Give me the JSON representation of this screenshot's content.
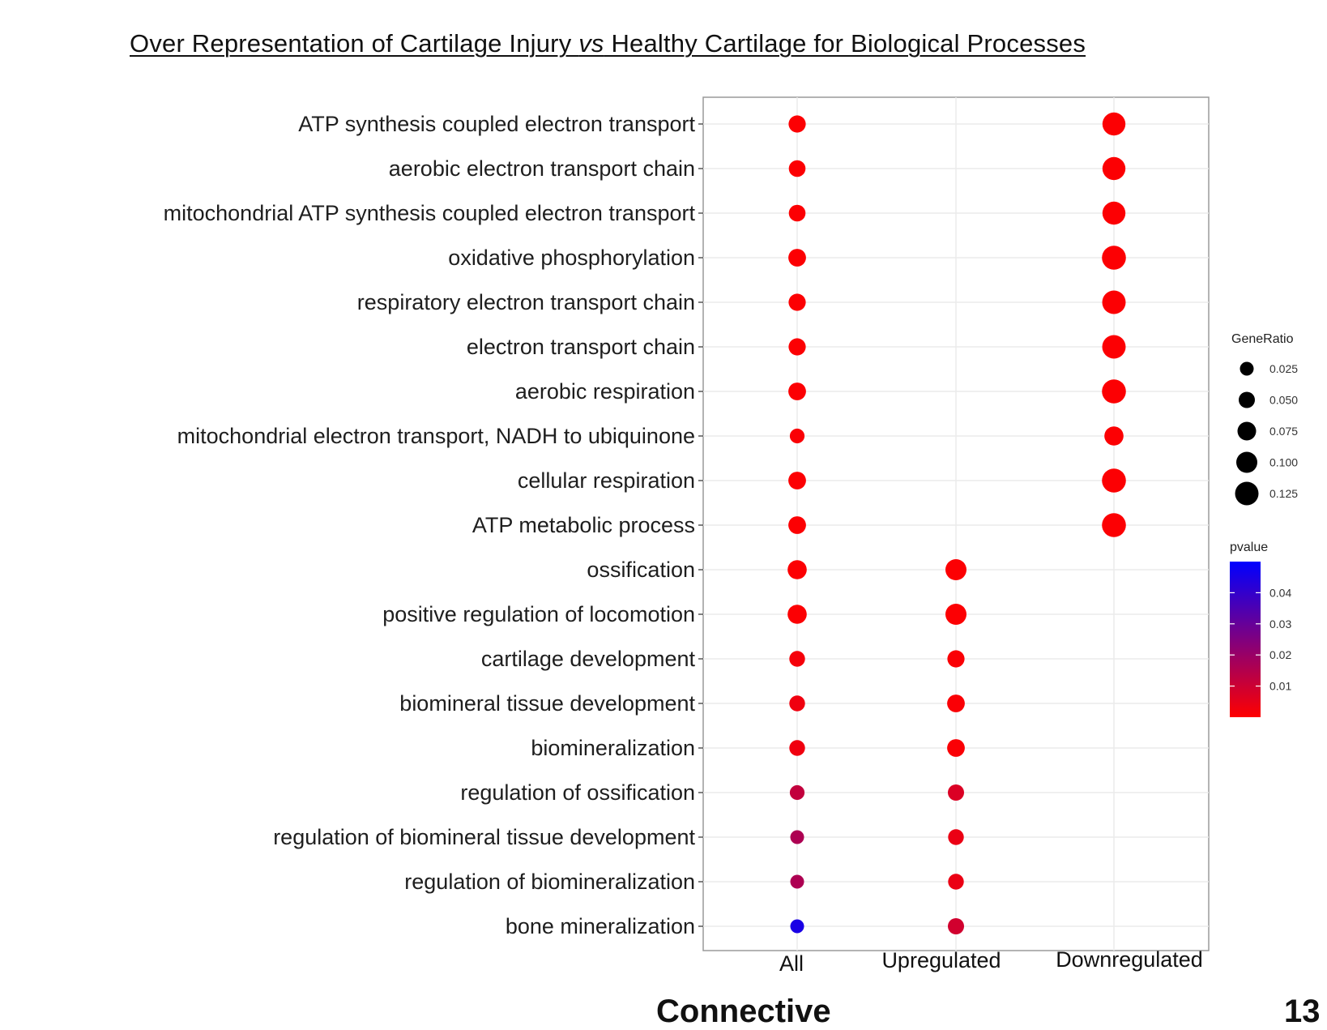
{
  "title": {
    "part1": "Over Representation of Cartilage Injury ",
    "italic": "vs",
    "part2": " Healthy Cartilage for Biological Processes"
  },
  "chart_data": {
    "type": "scatter",
    "subtype": "dot plot",
    "title": "Over Representation of Cartilage Injury vs Healthy Cartilage for Biological Processes",
    "categories_x": [
      "All",
      "Upregulated",
      "Downregulated"
    ],
    "categories_y": [
      "ATP synthesis coupled electron transport",
      "aerobic electron transport chain",
      "mitochondrial ATP synthesis coupled electron transport",
      "oxidative phosphorylation",
      "respiratory electron transport chain",
      "electron transport chain",
      "aerobic respiration",
      "mitochondrial electron transport, NADH to ubiquinone",
      "cellular respiration",
      "ATP metabolic process",
      "ossification",
      "positive regulation of locomotion",
      "cartilage development",
      "biomineral tissue development",
      "biomineralization",
      "regulation of ossification",
      "regulation of biomineral tissue development",
      "regulation of biomineralization",
      "bone mineralization"
    ],
    "points": [
      {
        "term": "ATP synthesis coupled electron transport",
        "group": "All",
        "gene_ratio": 0.06,
        "pvalue": 0.0005
      },
      {
        "term": "ATP synthesis coupled electron transport",
        "group": "Downregulated",
        "gene_ratio": 0.12,
        "pvalue": 0.0005
      },
      {
        "term": "aerobic electron transport chain",
        "group": "All",
        "gene_ratio": 0.055,
        "pvalue": 0.0005
      },
      {
        "term": "aerobic electron transport chain",
        "group": "Downregulated",
        "gene_ratio": 0.12,
        "pvalue": 0.0005
      },
      {
        "term": "mitochondrial ATP synthesis coupled electron transport",
        "group": "All",
        "gene_ratio": 0.055,
        "pvalue": 0.0005
      },
      {
        "term": "mitochondrial ATP synthesis coupled electron transport",
        "group": "Downregulated",
        "gene_ratio": 0.12,
        "pvalue": 0.0005
      },
      {
        "term": "oxidative phosphorylation",
        "group": "All",
        "gene_ratio": 0.065,
        "pvalue": 0.0005
      },
      {
        "term": "oxidative phosphorylation",
        "group": "Downregulated",
        "gene_ratio": 0.13,
        "pvalue": 0.0005
      },
      {
        "term": "respiratory electron transport chain",
        "group": "All",
        "gene_ratio": 0.06,
        "pvalue": 0.0005
      },
      {
        "term": "respiratory electron transport chain",
        "group": "Downregulated",
        "gene_ratio": 0.125,
        "pvalue": 0.0005
      },
      {
        "term": "electron transport chain",
        "group": "All",
        "gene_ratio": 0.06,
        "pvalue": 0.0005
      },
      {
        "term": "electron transport chain",
        "group": "Downregulated",
        "gene_ratio": 0.125,
        "pvalue": 0.0005
      },
      {
        "term": "aerobic respiration",
        "group": "All",
        "gene_ratio": 0.065,
        "pvalue": 0.0005
      },
      {
        "term": "aerobic respiration",
        "group": "Downregulated",
        "gene_ratio": 0.13,
        "pvalue": 0.0005
      },
      {
        "term": "mitochondrial electron transport, NADH to ubiquinone",
        "group": "All",
        "gene_ratio": 0.035,
        "pvalue": 0.001
      },
      {
        "term": "mitochondrial electron transport, NADH to ubiquinone",
        "group": "Downregulated",
        "gene_ratio": 0.08,
        "pvalue": 0.0005
      },
      {
        "term": "cellular respiration",
        "group": "All",
        "gene_ratio": 0.065,
        "pvalue": 0.0005
      },
      {
        "term": "cellular respiration",
        "group": "Downregulated",
        "gene_ratio": 0.13,
        "pvalue": 0.0005
      },
      {
        "term": "ATP metabolic process",
        "group": "All",
        "gene_ratio": 0.065,
        "pvalue": 0.0005
      },
      {
        "term": "ATP metabolic process",
        "group": "Downregulated",
        "gene_ratio": 0.13,
        "pvalue": 0.0005
      },
      {
        "term": "ossification",
        "group": "All",
        "gene_ratio": 0.08,
        "pvalue": 0.0005
      },
      {
        "term": "ossification",
        "group": "Upregulated",
        "gene_ratio": 0.1,
        "pvalue": 0.0005
      },
      {
        "term": "positive regulation of locomotion",
        "group": "All",
        "gene_ratio": 0.08,
        "pvalue": 0.0005
      },
      {
        "term": "positive regulation of locomotion",
        "group": "Upregulated",
        "gene_ratio": 0.1,
        "pvalue": 0.0005
      },
      {
        "term": "cartilage development",
        "group": "All",
        "gene_ratio": 0.045,
        "pvalue": 0.002
      },
      {
        "term": "cartilage development",
        "group": "Upregulated",
        "gene_ratio": 0.06,
        "pvalue": 0.001
      },
      {
        "term": "biomineral tissue development",
        "group": "All",
        "gene_ratio": 0.045,
        "pvalue": 0.003
      },
      {
        "term": "biomineral tissue development",
        "group": "Upregulated",
        "gene_ratio": 0.065,
        "pvalue": 0.001
      },
      {
        "term": "biomineralization",
        "group": "All",
        "gene_ratio": 0.045,
        "pvalue": 0.003
      },
      {
        "term": "biomineralization",
        "group": "Upregulated",
        "gene_ratio": 0.065,
        "pvalue": 0.001
      },
      {
        "term": "regulation of ossification",
        "group": "All",
        "gene_ratio": 0.035,
        "pvalue": 0.012
      },
      {
        "term": "regulation of ossification",
        "group": "Upregulated",
        "gene_ratio": 0.05,
        "pvalue": 0.007
      },
      {
        "term": "regulation of biomineral tissue development",
        "group": "All",
        "gene_ratio": 0.025,
        "pvalue": 0.016
      },
      {
        "term": "regulation of biomineral tissue development",
        "group": "Upregulated",
        "gene_ratio": 0.045,
        "pvalue": 0.004
      },
      {
        "term": "regulation of biomineralization",
        "group": "All",
        "gene_ratio": 0.025,
        "pvalue": 0.016
      },
      {
        "term": "regulation of biomineralization",
        "group": "Upregulated",
        "gene_ratio": 0.045,
        "pvalue": 0.004
      },
      {
        "term": "bone mineralization",
        "group": "All",
        "gene_ratio": 0.025,
        "pvalue": 0.045
      },
      {
        "term": "bone mineralization",
        "group": "Upregulated",
        "gene_ratio": 0.05,
        "pvalue": 0.009
      }
    ],
    "size_legend": {
      "title": "GeneRatio",
      "values": [
        0.025,
        0.05,
        0.075,
        0.1,
        0.125
      ],
      "labels": [
        "0.025",
        "0.050",
        "0.075",
        "0.100",
        "0.125"
      ]
    },
    "color_legend": {
      "title": "pvalue",
      "ticks": [
        0.04,
        0.03,
        0.02,
        0.01
      ],
      "labels": [
        "0.04",
        "0.03",
        "0.02",
        "0.01"
      ],
      "range": [
        0,
        0.05
      ],
      "low_color": "#ff0000",
      "high_color": "#0000ff"
    },
    "grid": true,
    "legend_position": "right",
    "xlabel": "",
    "ylabel": ""
  },
  "cutoff_text": {
    "left": "Connective",
    "right": "13"
  }
}
